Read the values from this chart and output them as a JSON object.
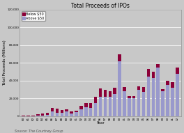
{
  "title": "Total Proceeds of IPOs",
  "xlabel": "Year",
  "ylabel": "Total Proceeds (Millions)",
  "source": "Source: The Courtney Group",
  "legend_labels": [
    "Below $50",
    "Above $50"
  ],
  "colors": [
    "#8B0038",
    "#9999CC"
  ],
  "background_color": "#C8C8C8",
  "ylim": [
    0,
    120000
  ],
  "yticks": [
    0,
    20000,
    40000,
    60000,
    80000,
    100000,
    120000
  ],
  "years": [
    "80",
    "81",
    "82",
    "83",
    "84",
    "85",
    "86",
    "87",
    "88",
    "89",
    "90",
    "91",
    "92",
    "93",
    "94",
    "95",
    "96",
    "97",
    "98",
    "99",
    "00",
    "01",
    "02",
    "03",
    "04",
    "05",
    "06",
    "07",
    "08",
    "09",
    "10",
    "11",
    "12"
  ],
  "below50": [
    800,
    300,
    700,
    1500,
    2000,
    2500,
    4000,
    4500,
    3500,
    3000,
    2000,
    1500,
    4000,
    5000,
    6000,
    7000,
    9000,
    8000,
    6000,
    7000,
    8000,
    5000,
    3000,
    2500,
    4000,
    6000,
    8000,
    7000,
    4000,
    2500,
    5000,
    6000,
    7000
  ],
  "above50": [
    200,
    100,
    200,
    500,
    800,
    1500,
    5000,
    4000,
    3500,
    5000,
    3000,
    4500,
    8000,
    10000,
    9000,
    15000,
    22000,
    22000,
    22000,
    25000,
    62000,
    28000,
    20000,
    20000,
    30000,
    27000,
    45000,
    43000,
    55000,
    28000,
    35000,
    32000,
    48000
  ],
  "title_fontsize": 5.5,
  "label_fontsize": 4,
  "tick_fontsize": 3,
  "legend_fontsize": 3.5,
  "source_fontsize": 3.5,
  "bar_width": 0.65
}
